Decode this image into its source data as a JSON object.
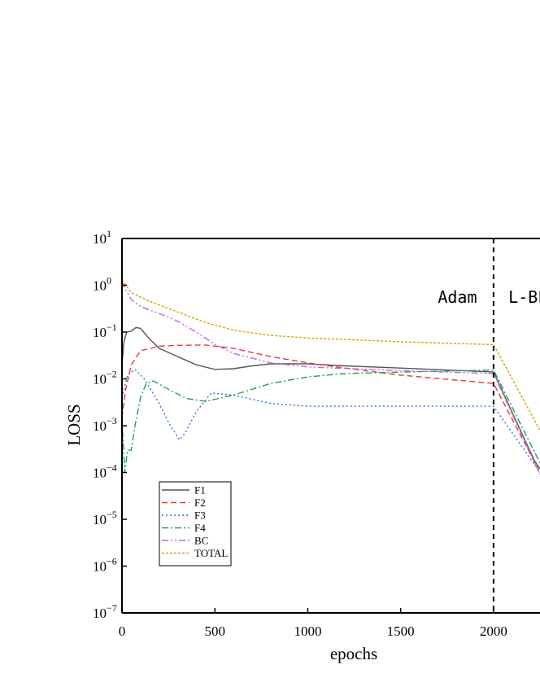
{
  "chart_data": {
    "type": "line",
    "xlabel": "epochs",
    "ylabel": "LOSS",
    "xlim": [
      0,
      2250
    ],
    "ylim": [
      1e-07,
      10
    ],
    "y_scale": "log",
    "x_ticks": [
      {
        "value": 0,
        "label": "0"
      },
      {
        "value": 500,
        "label": "500"
      },
      {
        "value": 1000,
        "label": "1000"
      },
      {
        "value": 1500,
        "label": "1500"
      },
      {
        "value": 2000,
        "label": "2000"
      }
    ],
    "y_ticks": [
      {
        "value": 1e-07,
        "base": "10",
        "exp": "−7"
      },
      {
        "value": 1e-06,
        "base": "10",
        "exp": "−6"
      },
      {
        "value": 1e-05,
        "base": "10",
        "exp": "−5"
      },
      {
        "value": 0.0001,
        "base": "10",
        "exp": "−4"
      },
      {
        "value": 0.001,
        "base": "10",
        "exp": "−3"
      },
      {
        "value": 0.01,
        "base": "10",
        "exp": "−2"
      },
      {
        "value": 0.1,
        "base": "10",
        "exp": "−1"
      },
      {
        "value": 1,
        "base": "10",
        "exp": "0"
      },
      {
        "value": 10,
        "base": "10",
        "exp": "1"
      }
    ],
    "vline": {
      "x": 2000,
      "style": "dashed"
    },
    "annotations": [
      {
        "text": "Adam",
        "x": 1700,
        "y": 0.42
      },
      {
        "text": "L-BFGS",
        "x": 2080,
        "y": 0.42
      }
    ],
    "legend_position": "bottom-left",
    "series": [
      {
        "name": "F1",
        "color": "#555555",
        "dash": "solid",
        "points": [
          [
            0,
            0.02
          ],
          [
            10,
            0.06
          ],
          [
            25,
            0.1
          ],
          [
            50,
            0.105
          ],
          [
            75,
            0.125
          ],
          [
            100,
            0.12
          ],
          [
            150,
            0.07
          ],
          [
            200,
            0.045
          ],
          [
            300,
            0.03
          ],
          [
            400,
            0.02
          ],
          [
            500,
            0.016
          ],
          [
            600,
            0.0165
          ],
          [
            700,
            0.019
          ],
          [
            800,
            0.021
          ],
          [
            1000,
            0.021
          ],
          [
            1200,
            0.019
          ],
          [
            1500,
            0.017
          ],
          [
            2000,
            0.014
          ],
          [
            2220,
            0.00018
          ],
          [
            2250,
            0.00012
          ]
        ]
      },
      {
        "name": "F2",
        "color": "#e8383d",
        "dash": "dashed",
        "points": [
          [
            0,
            0.0015
          ],
          [
            20,
            0.006
          ],
          [
            50,
            0.02
          ],
          [
            100,
            0.04
          ],
          [
            200,
            0.05
          ],
          [
            300,
            0.052
          ],
          [
            450,
            0.053
          ],
          [
            600,
            0.045
          ],
          [
            800,
            0.03
          ],
          [
            1000,
            0.022
          ],
          [
            1200,
            0.017
          ],
          [
            1500,
            0.012
          ],
          [
            2000,
            0.008
          ],
          [
            2250,
            0.0001
          ]
        ]
      },
      {
        "name": "F3",
        "color": "#2e6fd9",
        "dash": "dotted",
        "points": [
          [
            0,
            0.004
          ],
          [
            30,
            0.012
          ],
          [
            70,
            0.016
          ],
          [
            120,
            0.01
          ],
          [
            200,
            0.003
          ],
          [
            260,
            0.001
          ],
          [
            310,
            0.0005
          ],
          [
            340,
            0.0007
          ],
          [
            400,
            0.002
          ],
          [
            480,
            0.005
          ],
          [
            600,
            0.0045
          ],
          [
            800,
            0.003
          ],
          [
            1000,
            0.0026
          ],
          [
            1500,
            0.0026
          ],
          [
            2000,
            0.0026
          ],
          [
            2220,
            0.00015
          ],
          [
            2250,
            0.0001
          ]
        ]
      },
      {
        "name": "F4",
        "color": "#22a05a",
        "dash": "dashdot",
        "points": [
          [
            0,
            0.0015
          ],
          [
            15,
            0.0001
          ],
          [
            30,
            0.0003
          ],
          [
            50,
            0.0003
          ],
          [
            70,
            0.001
          ],
          [
            100,
            0.004
          ],
          [
            130,
            0.008
          ],
          [
            170,
            0.009
          ],
          [
            250,
            0.006
          ],
          [
            350,
            0.0038
          ],
          [
            450,
            0.0033
          ],
          [
            600,
            0.0045
          ],
          [
            800,
            0.008
          ],
          [
            1000,
            0.011
          ],
          [
            1200,
            0.013
          ],
          [
            1500,
            0.014
          ],
          [
            2000,
            0.0155
          ],
          [
            2250,
            0.00016
          ]
        ]
      },
      {
        "name": "BC",
        "color": "#c266dd",
        "dash": "dashdotdot",
        "points": [
          [
            0,
            1.2
          ],
          [
            20,
            0.8
          ],
          [
            50,
            0.5
          ],
          [
            100,
            0.35
          ],
          [
            200,
            0.25
          ],
          [
            300,
            0.17
          ],
          [
            400,
            0.1
          ],
          [
            500,
            0.055
          ],
          [
            600,
            0.035
          ],
          [
            800,
            0.022
          ],
          [
            1000,
            0.018
          ],
          [
            1500,
            0.015
          ],
          [
            2000,
            0.013
          ],
          [
            2250,
            9e-05
          ]
        ]
      },
      {
        "name": "TOTAL",
        "color": "#d9a100",
        "dash": "fine",
        "points": [
          [
            0,
            1.3
          ],
          [
            50,
            0.7
          ],
          [
            150,
            0.45
          ],
          [
            300,
            0.27
          ],
          [
            450,
            0.16
          ],
          [
            600,
            0.11
          ],
          [
            800,
            0.085
          ],
          [
            1000,
            0.075
          ],
          [
            1500,
            0.062
          ],
          [
            2000,
            0.054
          ],
          [
            2250,
            0.0008
          ]
        ]
      }
    ]
  }
}
